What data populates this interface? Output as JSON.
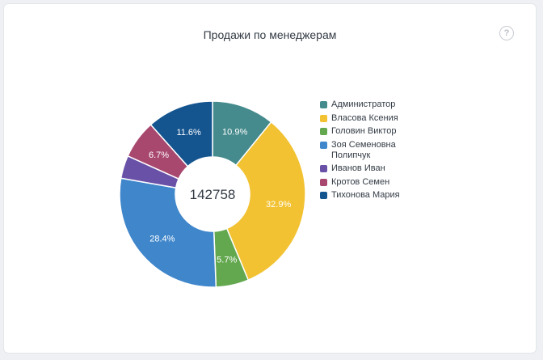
{
  "widget": {
    "title": "Продажи по менеджерам",
    "help_glyph": "?"
  },
  "chart_data": {
    "type": "pie",
    "donut": true,
    "title": "Продажи по менеджерам",
    "center_total": "142758",
    "legend_position": "right",
    "slices": [
      {
        "name": "Администратор",
        "percent": 10.9,
        "label": "10.9%",
        "color": "#458a8c"
      },
      {
        "name": "Власова Ксения",
        "percent": 32.9,
        "label": "32.9%",
        "color": "#f2c232"
      },
      {
        "name": "Головин Виктор",
        "percent": 5.7,
        "label": "5.7%",
        "color": "#63a84f"
      },
      {
        "name": "Зоя Семеновна Полипчук",
        "percent": 28.4,
        "label": "28.4%",
        "color": "#3f86cb"
      },
      {
        "name": "Иванов Иван",
        "percent": 4.0,
        "label": "",
        "color": "#6951a8"
      },
      {
        "name": "Кротов Семен",
        "percent": 6.7,
        "label": "6.7%",
        "color": "#a8486f"
      },
      {
        "name": "Тихонова Мария",
        "percent": 11.6,
        "label": "11.6%",
        "color": "#14548f"
      }
    ]
  }
}
